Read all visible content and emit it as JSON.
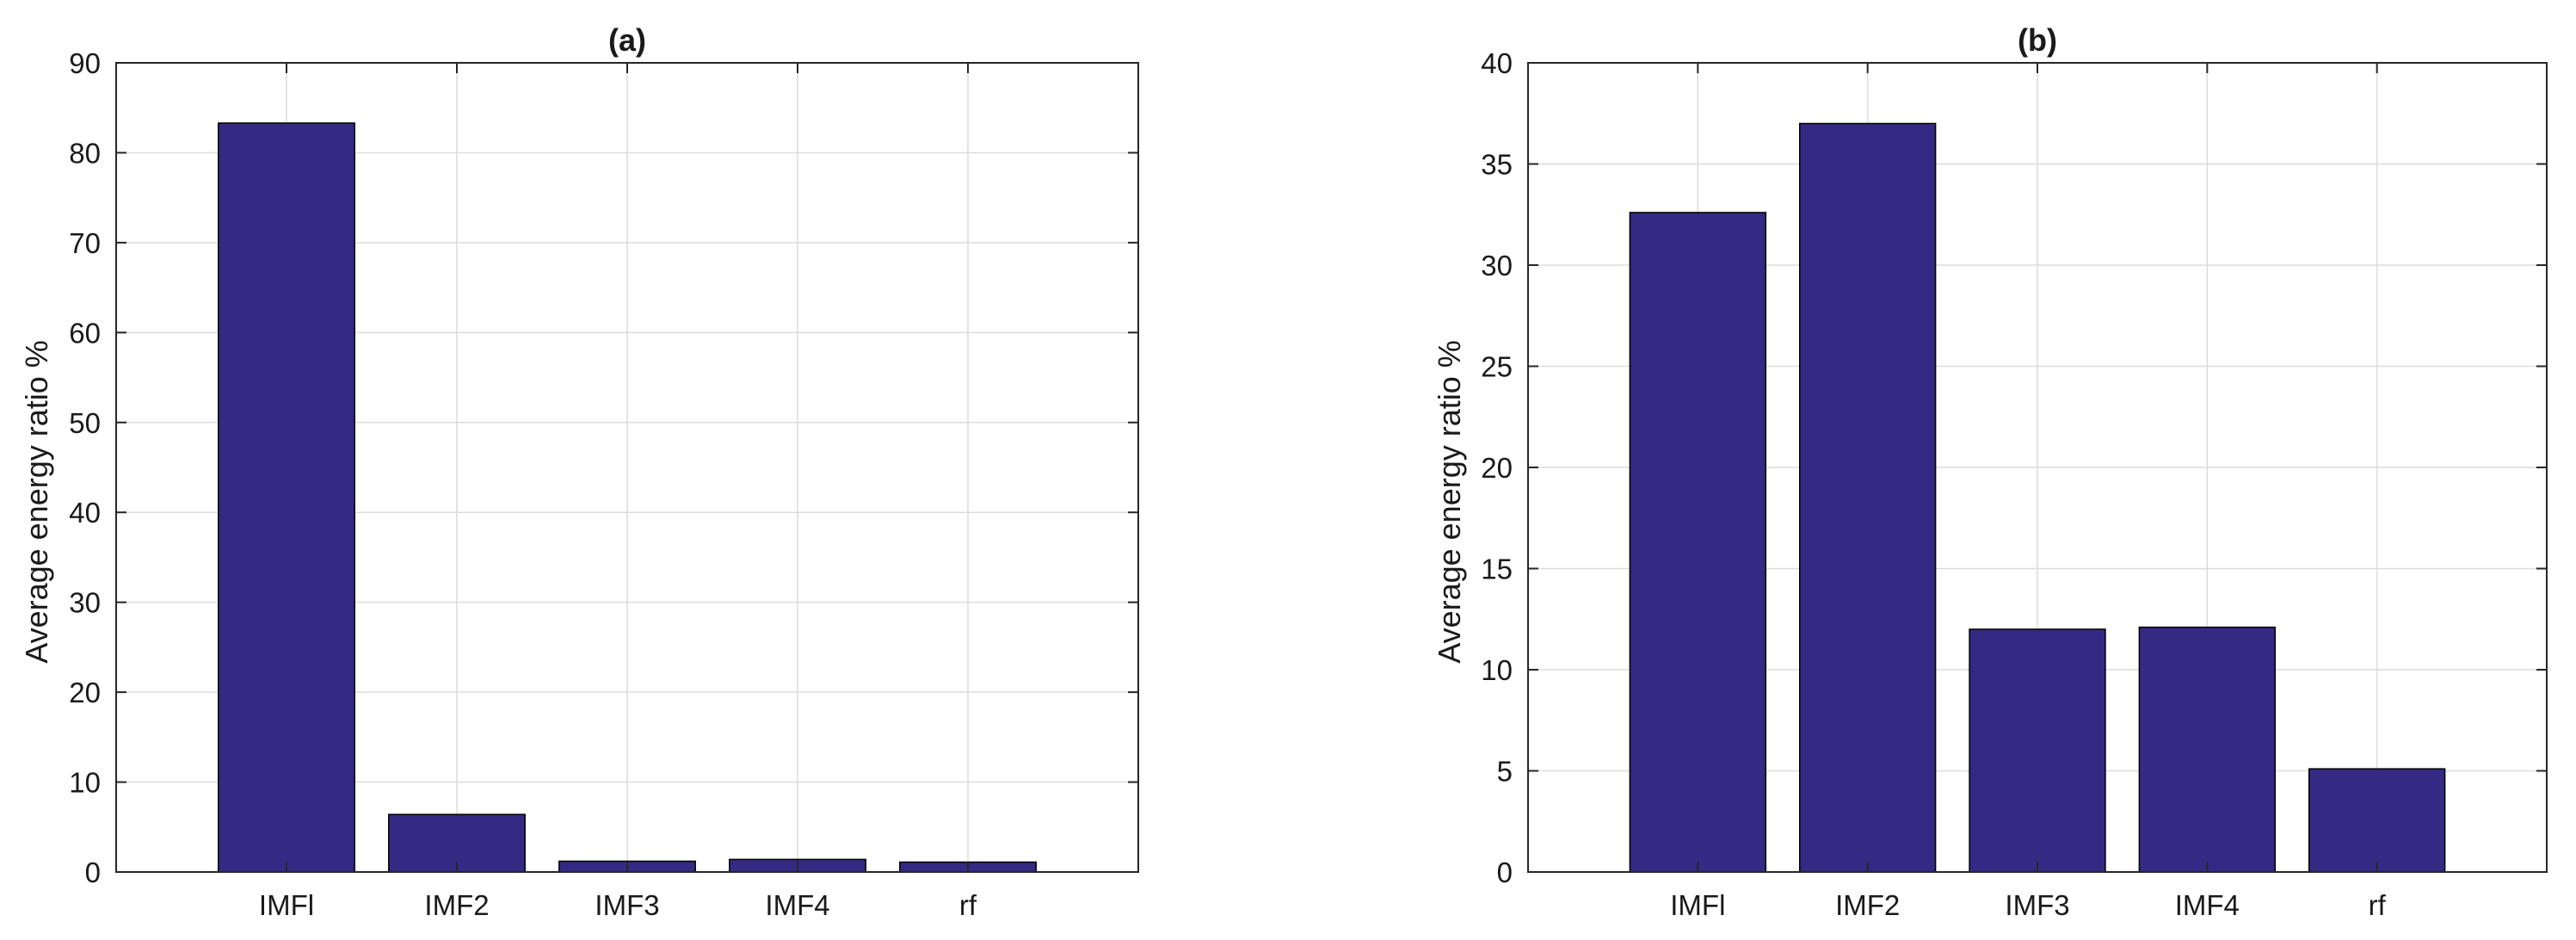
{
  "chart_data": [
    {
      "type": "bar",
      "title": "(a)",
      "xlabel": "",
      "ylabel": "Average energy ratio %",
      "categories": [
        "IMFl",
        "IMF2",
        "IMF3",
        "IMF4",
        "rf"
      ],
      "values": [
        83.3,
        6.4,
        1.2,
        1.4,
        1.1
      ],
      "ylim": [
        0,
        90
      ],
      "yticks": [
        0,
        10,
        20,
        30,
        40,
        50,
        60,
        70,
        80,
        90
      ],
      "grid": true,
      "bar_color": "#342a83"
    },
    {
      "type": "bar",
      "title": "(b)",
      "xlabel": "",
      "ylabel": "Average energy ratio %",
      "categories": [
        "IMFl",
        "IMF2",
        "IMF3",
        "IMF4",
        "rf"
      ],
      "values": [
        32.6,
        37.0,
        12.0,
        12.1,
        5.1
      ],
      "ylim": [
        0,
        40
      ],
      "yticks": [
        0,
        5,
        10,
        15,
        20,
        25,
        30,
        35,
        40
      ],
      "grid": true,
      "bar_color": "#342a83"
    }
  ]
}
